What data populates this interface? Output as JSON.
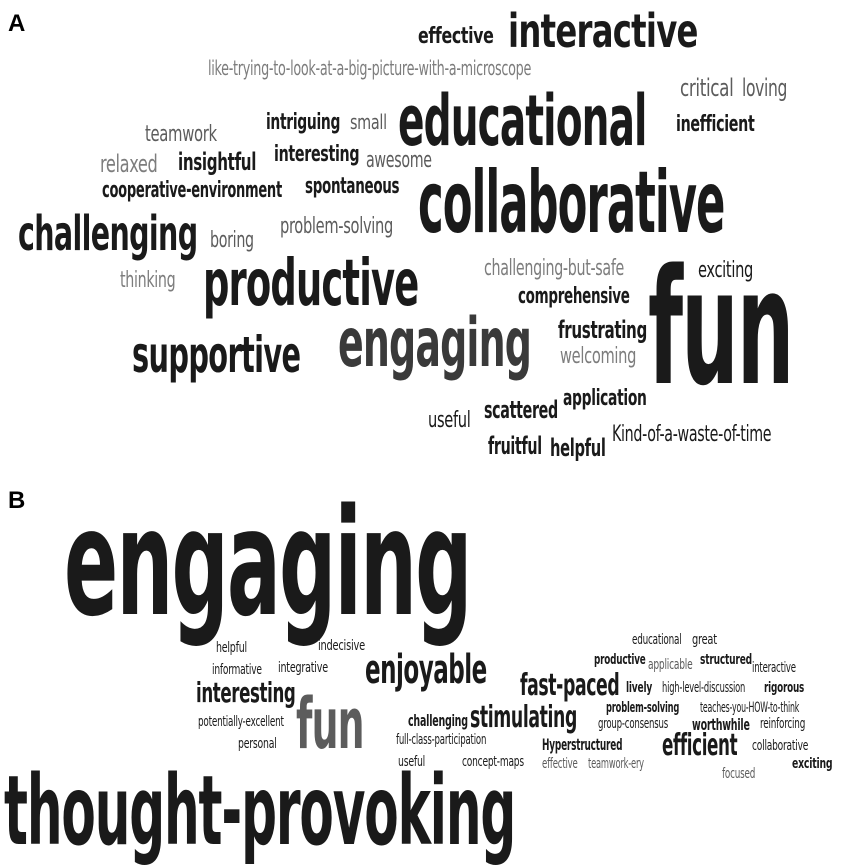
{
  "panel_a": {
    "label": "A",
    "words": [
      {
        "text": "interactive"
      },
      {
        "text": "effective"
      },
      {
        "text": "like-trying-to-look-at-a-big-picture-with-a-microscope"
      },
      {
        "text": "critical"
      },
      {
        "text": "loving"
      },
      {
        "text": "educational"
      },
      {
        "text": "inefficient"
      },
      {
        "text": "teamwork"
      },
      {
        "text": "intriguing"
      },
      {
        "text": "small"
      },
      {
        "text": "relaxed"
      },
      {
        "text": "insightful"
      },
      {
        "text": "interesting"
      },
      {
        "text": "awesome"
      },
      {
        "text": "cooperative-environment"
      },
      {
        "text": "spontaneous"
      },
      {
        "text": "collaborative"
      },
      {
        "text": "challenging"
      },
      {
        "text": "boring"
      },
      {
        "text": "problem-solving"
      },
      {
        "text": "thinking"
      },
      {
        "text": "productive"
      },
      {
        "text": "challenging-but-safe"
      },
      {
        "text": "exciting"
      },
      {
        "text": "comprehensive"
      },
      {
        "text": "fun"
      },
      {
        "text": "supportive"
      },
      {
        "text": "engaging"
      },
      {
        "text": "frustrating"
      },
      {
        "text": "welcoming"
      },
      {
        "text": "application"
      },
      {
        "text": "useful"
      },
      {
        "text": "scattered"
      },
      {
        "text": "fruitful"
      },
      {
        "text": "helpful"
      },
      {
        "text": "Kind-of-a-waste-of-time"
      }
    ]
  },
  "panel_b": {
    "label": "B",
    "words": [
      {
        "text": "engaging"
      },
      {
        "text": "helpful"
      },
      {
        "text": "indecisive"
      },
      {
        "text": "informative"
      },
      {
        "text": "integrative"
      },
      {
        "text": "enjoyable"
      },
      {
        "text": "interesting"
      },
      {
        "text": "fun"
      },
      {
        "text": "potentially-excellent"
      },
      {
        "text": "personal"
      },
      {
        "text": "challenging"
      },
      {
        "text": "stimulating"
      },
      {
        "text": "full-class-participation"
      },
      {
        "text": "useful"
      },
      {
        "text": "concept-maps"
      },
      {
        "text": "fast-paced"
      },
      {
        "text": "educational"
      },
      {
        "text": "great"
      },
      {
        "text": "productive"
      },
      {
        "text": "applicable"
      },
      {
        "text": "structured"
      },
      {
        "text": "interactive"
      },
      {
        "text": "lively"
      },
      {
        "text": "high-level-discussion"
      },
      {
        "text": "rigorous"
      },
      {
        "text": "problem-solving"
      },
      {
        "text": "teaches-you-HOW-to-think"
      },
      {
        "text": "group-consensus"
      },
      {
        "text": "worthwhile"
      },
      {
        "text": "reinforcing"
      },
      {
        "text": "Hyperstructured"
      },
      {
        "text": "efficient"
      },
      {
        "text": "collaborative"
      },
      {
        "text": "effective"
      },
      {
        "text": "teamwork-ery"
      },
      {
        "text": "focused"
      },
      {
        "text": "exciting"
      },
      {
        "text": "thought-provoking"
      }
    ]
  }
}
